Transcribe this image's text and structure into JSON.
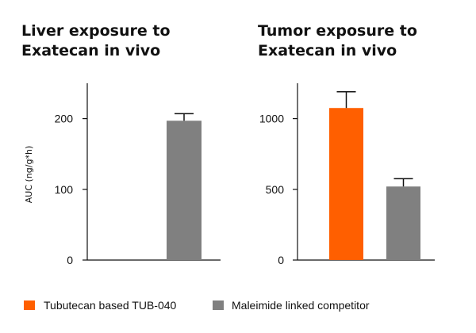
{
  "chart_data": [
    {
      "type": "bar",
      "title": "Liver exposure to Exatecan in vivo",
      "title_lines": [
        "Liver exposure to",
        "Exatecan in vivo"
      ],
      "ylabel": "AUC (ng/g*h)",
      "ylim": [
        0,
        250
      ],
      "yticks": [
        0,
        100,
        200
      ],
      "categories": [
        "Tubutecan based TUB-040",
        "Maleimide linked competitor"
      ],
      "values": [
        null,
        197
      ],
      "errors": [
        null,
        10
      ],
      "colors": [
        "#FF5F00",
        "#808080"
      ]
    },
    {
      "type": "bar",
      "title": "Tumor exposure to Exatecan in vivo",
      "title_lines": [
        "Tumor exposure to",
        "Exatecan in vivo"
      ],
      "ylabel": "",
      "ylim": [
        0,
        1250
      ],
      "yticks": [
        0,
        500,
        1000
      ],
      "categories": [
        "Tubutecan based TUB-040",
        "Maleimide linked competitor"
      ],
      "values": [
        1075,
        520
      ],
      "errors": [
        115,
        55
      ],
      "colors": [
        "#FF5F00",
        "#808080"
      ]
    }
  ],
  "legend": [
    {
      "label": "Tubutecan based TUB-040",
      "color": "#FF5F00"
    },
    {
      "label": "Maleimide linked competitor",
      "color": "#808080"
    }
  ]
}
